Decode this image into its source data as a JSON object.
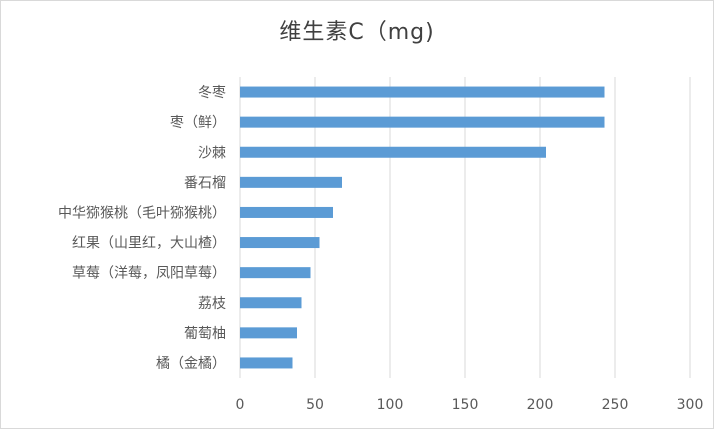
{
  "chart_data": {
    "type": "bar",
    "orientation": "horizontal",
    "title": "维生素C（mg)",
    "categories": [
      "冬枣",
      "枣（鲜）",
      "沙棘",
      "番石榴",
      "中华猕猴桃（毛叶猕猴桃）",
      "红果（山里红，大山楂）",
      "草莓（洋莓，凤阳草莓）",
      "荔枝",
      "葡萄柚",
      "橘（金橘）"
    ],
    "values": [
      243,
      243,
      204,
      68,
      62,
      53,
      47,
      41,
      38,
      35
    ],
    "xlim": [
      0,
      300
    ],
    "xticks": [
      0,
      50,
      100,
      150,
      200,
      250,
      300
    ],
    "grid": "vertical",
    "legend": "none",
    "colors": {
      "bar": "#5b9bd5",
      "grid": "#d9d9d9",
      "text": "#595959",
      "title": "#404040"
    }
  }
}
